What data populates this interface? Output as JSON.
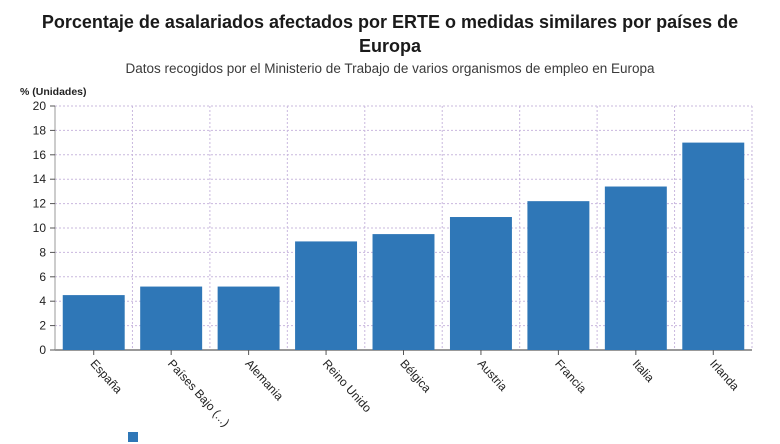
{
  "chart_data": {
    "type": "bar",
    "title": "Porcentaje de asalariados afectados por ERTE o medidas similares por países de Europa",
    "subtitle": "Datos recogidos por el Ministerio de Trabajo de varios organismos de empleo en Europa",
    "ylabel": "% (Unidades)",
    "xlabel": "",
    "categories": [
      "España",
      "Países Bajo (...)",
      "Alemania",
      "Reino Unido",
      "Bélgica",
      "Austria",
      "Francia",
      "Italia",
      "Irlanda"
    ],
    "values": [
      4.5,
      5.2,
      5.2,
      8.9,
      9.5,
      10.9,
      12.2,
      13.4,
      17.0
    ],
    "ylim": [
      0,
      20
    ],
    "yticks": [
      0,
      2,
      4,
      6,
      8,
      10,
      12,
      14,
      16,
      18,
      20
    ],
    "grid": true,
    "bar_color": "#2f77b7",
    "grid_color": "#c9b8de"
  }
}
